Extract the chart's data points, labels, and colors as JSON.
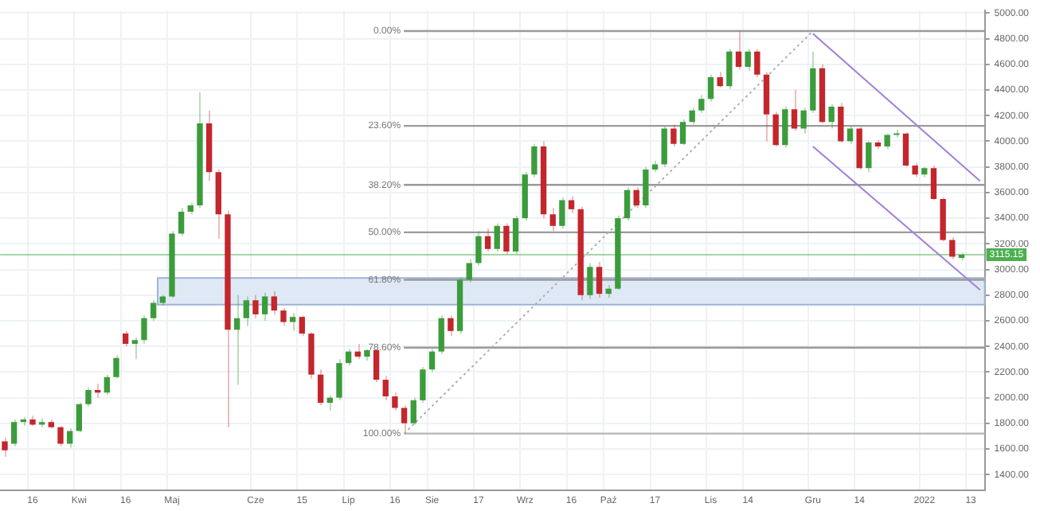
{
  "chart_data": {
    "type": "candlestick",
    "categories": [
      null,
      null,
      null,
      "16",
      null,
      null,
      null,
      null,
      "Kwi",
      null,
      null,
      null,
      null,
      "16",
      null,
      null,
      null,
      null,
      "Maj",
      null,
      null,
      null,
      null,
      null,
      null,
      null,
      null,
      "Cze",
      null,
      null,
      null,
      null,
      "15",
      null,
      null,
      null,
      null,
      "Lip",
      null,
      null,
      null,
      null,
      "16",
      null,
      null,
      null,
      "Sie",
      null,
      null,
      null,
      null,
      "17",
      null,
      null,
      null,
      null,
      "Wrz",
      null,
      null,
      null,
      null,
      "16",
      null,
      null,
      null,
      "Paź",
      null,
      null,
      null,
      null,
      "17",
      null,
      null,
      null,
      null,
      null,
      "Lis",
      null,
      null,
      null,
      "14",
      null,
      null,
      null,
      null,
      null,
      null,
      "Gru",
      null,
      null,
      null,
      null,
      "14",
      null,
      null,
      null,
      null,
      null,
      null,
      "2022",
      null,
      null,
      null,
      null,
      "13",
      null
    ],
    "ohlc": [
      [
        1660,
        1690,
        1540,
        1590
      ],
      [
        1640,
        1830,
        1620,
        1810
      ],
      [
        1810,
        1850,
        1780,
        1830
      ],
      [
        1830,
        1860,
        1780,
        1790
      ],
      [
        1790,
        1840,
        1770,
        1810
      ],
      [
        1810,
        1830,
        1760,
        1770
      ],
      [
        1770,
        1780,
        1620,
        1640
      ],
      [
        1640,
        1760,
        1610,
        1740
      ],
      [
        1740,
        1960,
        1730,
        1950
      ],
      [
        1950,
        2080,
        1930,
        2060
      ],
      [
        2060,
        2110,
        2000,
        2040
      ],
      [
        2040,
        2180,
        2020,
        2160
      ],
      [
        2160,
        2330,
        2150,
        2310
      ],
      [
        2500,
        2520,
        2400,
        2420
      ],
      [
        2420,
        2470,
        2300,
        2450
      ],
      [
        2450,
        2640,
        2420,
        2620
      ],
      [
        2620,
        2760,
        2600,
        2740
      ],
      [
        2740,
        2800,
        2720,
        2790
      ],
      [
        2790,
        3300,
        2780,
        3280
      ],
      [
        3280,
        3480,
        3260,
        3450
      ],
      [
        3450,
        3520,
        3430,
        3500
      ],
      [
        3500,
        4380,
        3480,
        4140
      ],
      [
        4140,
        4240,
        3690,
        3760
      ],
      [
        3760,
        3780,
        3240,
        3430
      ],
      [
        3430,
        3460,
        1770,
        2530
      ],
      [
        2530,
        2800,
        2100,
        2620
      ],
      [
        2620,
        2790,
        2560,
        2760
      ],
      [
        2760,
        2800,
        2620,
        2650
      ],
      [
        2650,
        2820,
        2600,
        2790
      ],
      [
        2790,
        2830,
        2650,
        2680
      ],
      [
        2680,
        2700,
        2560,
        2590
      ],
      [
        2590,
        2660,
        2520,
        2630
      ],
      [
        2630,
        2640,
        2480,
        2500
      ],
      [
        2500,
        2510,
        2150,
        2180
      ],
      [
        2180,
        2220,
        1940,
        1960
      ],
      [
        1960,
        2020,
        1900,
        2000
      ],
      [
        2000,
        2300,
        1980,
        2270
      ],
      [
        2270,
        2380,
        2250,
        2360
      ],
      [
        2360,
        2420,
        2300,
        2320
      ],
      [
        2320,
        2380,
        2290,
        2370
      ],
      [
        2370,
        2380,
        2120,
        2140
      ],
      [
        2140,
        2170,
        1980,
        2010
      ],
      [
        2010,
        2040,
        1900,
        1920
      ],
      [
        1920,
        1940,
        1719,
        1800
      ],
      [
        1800,
        2000,
        1790,
        1980
      ],
      [
        1980,
        2240,
        1960,
        2220
      ],
      [
        2220,
        2380,
        2200,
        2360
      ],
      [
        2360,
        2640,
        2340,
        2620
      ],
      [
        2620,
        2640,
        2480,
        2520
      ],
      [
        2520,
        2940,
        2500,
        2920
      ],
      [
        2920,
        3080,
        2900,
        3050
      ],
      [
        3050,
        3300,
        3030,
        3260
      ],
      [
        3260,
        3320,
        3140,
        3160
      ],
      [
        3160,
        3360,
        3140,
        3340
      ],
      [
        3340,
        3360,
        3120,
        3140
      ],
      [
        3140,
        3420,
        3120,
        3400
      ],
      [
        3400,
        3760,
        3380,
        3740
      ],
      [
        3740,
        3980,
        3720,
        3960
      ],
      [
        3960,
        4000,
        3400,
        3430
      ],
      [
        3430,
        3480,
        3300,
        3340
      ],
      [
        3340,
        3560,
        3320,
        3540
      ],
      [
        3540,
        3570,
        3440,
        3470
      ],
      [
        3470,
        3490,
        2760,
        2800
      ],
      [
        2800,
        3050,
        2770,
        3020
      ],
      [
        3020,
        3060,
        2780,
        2810
      ],
      [
        2810,
        2880,
        2780,
        2850
      ],
      [
        2850,
        3420,
        2840,
        3400
      ],
      [
        3400,
        3640,
        3380,
        3620
      ],
      [
        3620,
        3640,
        3480,
        3500
      ],
      [
        3500,
        3800,
        3480,
        3780
      ],
      [
        3780,
        3850,
        3760,
        3820
      ],
      [
        3820,
        4120,
        3800,
        4100
      ],
      [
        4100,
        4130,
        3960,
        3980
      ],
      [
        3980,
        4170,
        3970,
        4150
      ],
      [
        4150,
        4260,
        4130,
        4240
      ],
      [
        4240,
        4360,
        4220,
        4330
      ],
      [
        4330,
        4520,
        4310,
        4500
      ],
      [
        4500,
        4540,
        4420,
        4430
      ],
      [
        4430,
        4720,
        4410,
        4700
      ],
      [
        4700,
        4860,
        4560,
        4580
      ],
      [
        4580,
        4720,
        4550,
        4700
      ],
      [
        4700,
        4720,
        4500,
        4520
      ],
      [
        4520,
        4540,
        4000,
        4210
      ],
      [
        4210,
        4230,
        3960,
        3970
      ],
      [
        3970,
        4270,
        3950,
        4250
      ],
      [
        4250,
        4400,
        4080,
        4100
      ],
      [
        4100,
        4260,
        4060,
        4240
      ],
      [
        4240,
        4700,
        4220,
        4570
      ],
      [
        4570,
        4600,
        4140,
        4150
      ],
      [
        4150,
        4290,
        4100,
        4270
      ],
      [
        4270,
        4300,
        3990,
        4000
      ],
      [
        4000,
        4120,
        3980,
        4100
      ],
      [
        4100,
        4110,
        3780,
        3790
      ],
      [
        3790,
        4000,
        3760,
        3990
      ],
      [
        3990,
        4010,
        3940,
        3960
      ],
      [
        3960,
        4060,
        3940,
        4050
      ],
      [
        4050,
        4090,
        4030,
        4060
      ],
      [
        4060,
        4070,
        3800,
        3810
      ],
      [
        3810,
        3830,
        3720,
        3740
      ],
      [
        3740,
        3800,
        3720,
        3790
      ],
      [
        3790,
        3810,
        3540,
        3550
      ],
      [
        3550,
        3560,
        3220,
        3230
      ],
      [
        3230,
        3250,
        3080,
        3100
      ],
      [
        3090,
        3130,
        3070,
        3115.15
      ],
      null,
      null
    ],
    "series": [
      {
        "type": "line",
        "color": "#b0b0b0",
        "line_style": "dotted",
        "values": [
          null,
          null,
          null,
          null,
          null,
          null,
          null,
          null,
          null,
          null,
          null,
          null,
          null,
          null,
          null,
          null,
          null,
          null,
          null,
          null,
          null,
          null,
          null,
          null,
          null,
          null,
          null,
          null,
          null,
          null,
          null,
          null,
          null,
          null,
          null,
          null,
          null,
          null,
          null,
          null,
          null,
          null,
          null,
          1720,
          null,
          null,
          null,
          null,
          null,
          null,
          null,
          null,
          null,
          null,
          null,
          null,
          null,
          null,
          null,
          null,
          null,
          null,
          null,
          null,
          null,
          null,
          null,
          null,
          null,
          null,
          null,
          null,
          null,
          null,
          null,
          null,
          null,
          null,
          null,
          null,
          null,
          null,
          null,
          null,
          null,
          null,
          null,
          4860,
          null,
          null,
          null,
          null,
          null,
          null,
          null,
          null,
          null,
          null,
          null,
          null,
          null,
          null,
          null,
          null,
          null,
          null
        ]
      },
      {
        "type": "line",
        "color": "#a27fd6",
        "line_style": "solid",
        "values": [
          null,
          null,
          null,
          null,
          null,
          null,
          null,
          null,
          null,
          null,
          null,
          null,
          null,
          null,
          null,
          null,
          null,
          null,
          null,
          null,
          null,
          null,
          null,
          null,
          null,
          null,
          null,
          null,
          null,
          null,
          null,
          null,
          null,
          null,
          null,
          null,
          null,
          null,
          null,
          null,
          null,
          null,
          null,
          null,
          null,
          null,
          null,
          null,
          null,
          null,
          null,
          null,
          null,
          null,
          null,
          null,
          null,
          null,
          null,
          null,
          null,
          null,
          null,
          null,
          null,
          null,
          null,
          null,
          null,
          null,
          null,
          null,
          null,
          null,
          null,
          null,
          null,
          null,
          null,
          null,
          null,
          null,
          null,
          null,
          null,
          null,
          null,
          4840,
          null,
          null,
          null,
          null,
          null,
          null,
          null,
          null,
          null,
          null,
          null,
          null,
          null,
          null,
          null,
          null,
          null,
          3690
        ]
      },
      {
        "type": "line",
        "color": "#a27fd6",
        "line_style": "solid",
        "values": [
          null,
          null,
          null,
          null,
          null,
          null,
          null,
          null,
          null,
          null,
          null,
          null,
          null,
          null,
          null,
          null,
          null,
          null,
          null,
          null,
          null,
          null,
          null,
          null,
          null,
          null,
          null,
          null,
          null,
          null,
          null,
          null,
          null,
          null,
          null,
          null,
          null,
          null,
          null,
          null,
          null,
          null,
          null,
          null,
          null,
          null,
          null,
          null,
          null,
          null,
          null,
          null,
          null,
          null,
          null,
          null,
          null,
          null,
          null,
          null,
          null,
          null,
          null,
          null,
          null,
          null,
          null,
          null,
          null,
          null,
          null,
          null,
          null,
          null,
          null,
          null,
          null,
          null,
          null,
          null,
          null,
          null,
          null,
          null,
          null,
          null,
          null,
          3960,
          null,
          null,
          null,
          null,
          null,
          null,
          null,
          null,
          null,
          null,
          null,
          null,
          null,
          null,
          null,
          null,
          null,
          2840
        ]
      }
    ],
    "ylim": [
      1280,
      5020
    ],
    "yticks": [
      {
        "value": 1400,
        "label": "1400.00"
      },
      {
        "value": 1600,
        "label": "1600.00"
      },
      {
        "value": 1800,
        "label": "1800.00"
      },
      {
        "value": 2000,
        "label": "2000.00"
      },
      {
        "value": 2200,
        "label": "2200.00"
      },
      {
        "value": 2400,
        "label": "2400.00"
      },
      {
        "value": 2600,
        "label": "2600.00"
      },
      {
        "value": 2800,
        "label": "2800.00"
      },
      {
        "value": 3000,
        "label": "3000.00"
      },
      {
        "value": 3200,
        "label": "3200.00"
      },
      {
        "value": 3400,
        "label": "3400.00"
      },
      {
        "value": 3600,
        "label": "3600.00"
      },
      {
        "value": 3800,
        "label": "3800.00"
      },
      {
        "value": 4000,
        "label": "4000.00"
      },
      {
        "value": 4200,
        "label": "4200.00"
      },
      {
        "value": 4400,
        "label": "4400.00"
      },
      {
        "value": 4600,
        "label": "4600.00"
      },
      {
        "value": 4800,
        "label": "4800.00"
      },
      {
        "value": 5000,
        "label": "5000.00"
      }
    ],
    "grid": true,
    "annotations": [
      "0.00%",
      "23.60%",
      "38.20%",
      "50.00%",
      "61.80%",
      "78.60%",
      "100.00%"
    ],
    "ref_lines": [
      {
        "axis": "y",
        "value": 4860,
        "color": "#9a9a9a"
      },
      {
        "axis": "y",
        "value": 4120,
        "color": "#9a9a9a"
      },
      {
        "axis": "y",
        "value": 3660,
        "color": "#9a9a9a"
      },
      {
        "axis": "y",
        "value": 3290,
        "color": "#9a9a9a"
      },
      {
        "axis": "y",
        "value": 2920,
        "color": "#9a9a9a"
      },
      {
        "axis": "y",
        "value": 2390,
        "color": "#9a9a9a"
      },
      {
        "axis": "y",
        "value": 1720,
        "color": "#bcbcbc"
      },
      {
        "axis": "y",
        "value": 3115.15,
        "label": "3115.15",
        "color": "#4caf50"
      }
    ],
    "bands": [
      {
        "axis": "y",
        "from": 2726,
        "to": 2934,
        "color": "#dfe9f6"
      }
    ]
  }
}
